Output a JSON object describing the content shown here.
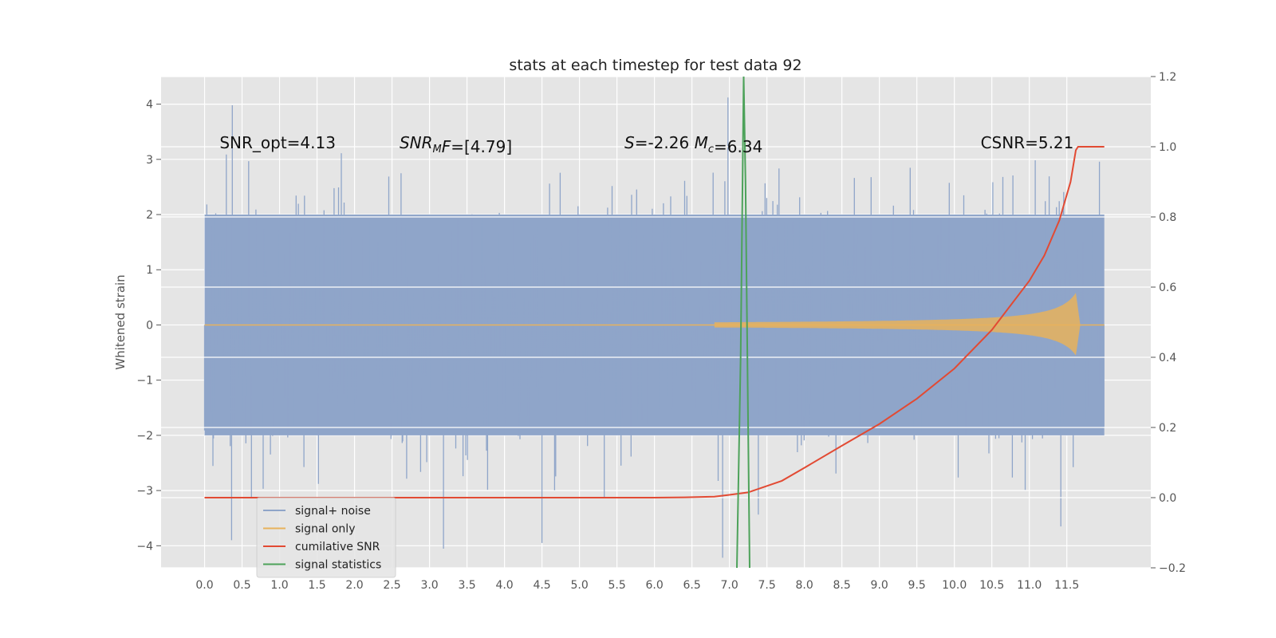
{
  "chart_data": {
    "type": "line",
    "title": "stats at each timestep for test data 92",
    "ylabel": "Whitened strain",
    "xlabel": "",
    "xlim": [
      -0.58,
      12.62
    ],
    "ylim": [
      -4.4,
      4.5
    ],
    "y2lim": [
      -0.2,
      1.2
    ],
    "x_ticks": [
      "0.0",
      "0.5",
      "1.0",
      "1.5",
      "2.0",
      "2.5",
      "3.0",
      "3.5",
      "4.0",
      "4.5",
      "5.0",
      "5.5",
      "6.0",
      "6.5",
      "7.0",
      "7.5",
      "8.0",
      "8.5",
      "9.0",
      "9.5",
      "10.0",
      "10.5",
      "11.0",
      "11.5"
    ],
    "x_tick_values": [
      0,
      0.5,
      1,
      1.5,
      2,
      2.5,
      3,
      3.5,
      4,
      4.5,
      5,
      5.5,
      6,
      6.5,
      7,
      7.5,
      8,
      8.5,
      9,
      9.5,
      10,
      10.5,
      11,
      11.5
    ],
    "y_ticks": [
      "−4",
      "−3",
      "−2",
      "−1",
      "0",
      "1",
      "2",
      "3",
      "4"
    ],
    "y_tick_values": [
      -4,
      -3,
      -2,
      -1,
      0,
      1,
      2,
      3,
      4
    ],
    "y2_ticks": [
      "−0.2",
      "0.0",
      "0.2",
      "0.4",
      "0.6",
      "0.8",
      "1.0",
      "1.2"
    ],
    "y2_tick_values": [
      -0.2,
      0,
      0.2,
      0.4,
      0.6,
      0.8,
      1.0,
      1.2
    ],
    "grid": true,
    "legend_position": "bottom-left",
    "annotations": [
      {
        "text": "SNR_opt=4.13",
        "x": 0.2,
        "y": 3.3
      },
      {
        "text": "SNR_MF=[4.79]",
        "x": 2.6,
        "y": 3.3,
        "parts": [
          {
            "t": "SNR",
            "style": "italic"
          },
          {
            "t": "M",
            "style": "italic",
            "sub": true
          },
          {
            "t": "F",
            "style": "italic"
          },
          {
            "t": "=[4.79]",
            "style": "normal"
          }
        ]
      },
      {
        "text": "S=-2.26  M_c=6.34",
        "x": 5.6,
        "y": 3.3,
        "parts": [
          {
            "t": "S",
            "style": "italic"
          },
          {
            "t": "=-2.26  ",
            "style": "normal"
          },
          {
            "t": "M",
            "style": "italic"
          },
          {
            "t": "c",
            "style": "italic",
            "sub": true
          },
          {
            "t": "=6.34",
            "style": "normal"
          }
        ]
      },
      {
        "text": "CSNR=5.21",
        "x": 10.35,
        "y": 3.3
      }
    ],
    "series": [
      {
        "name": "signal+ noise",
        "color": "#8fa5c9",
        "kind": "noise",
        "x_range": [
          0,
          12
        ],
        "amplitude": 2.0,
        "noise_std": 1.0,
        "peak_examples": [
          [
            0.37,
            3.98
          ],
          [
            0.36,
            -3.9
          ],
          [
            6.98,
            4.12
          ],
          [
            4.5,
            -3.95
          ],
          [
            11.42,
            -3.65
          ]
        ]
      },
      {
        "name": "signal only",
        "color": "#e8b25c",
        "kind": "chirp",
        "x_range": [
          0,
          11.68
        ],
        "start_amplitude": 0.01,
        "end_amplitude": 0.58,
        "merger": 11.62,
        "ringdown_end": 11.68
      },
      {
        "name": "cumilative SNR",
        "color": "#e24a33",
        "kind": "curve",
        "axis": "right",
        "x": [
          0,
          5,
          6,
          6.4,
          6.8,
          7.0,
          7.25,
          7.7,
          8.0,
          8.5,
          9.0,
          9.5,
          10.0,
          10.5,
          11.0,
          11.2,
          11.4,
          11.55,
          11.62,
          11.65,
          12.0
        ],
        "y": [
          0,
          0,
          0,
          0.001,
          0.003,
          0.008,
          0.015,
          0.048,
          0.085,
          0.148,
          0.21,
          0.282,
          0.368,
          0.478,
          0.618,
          0.69,
          0.79,
          0.9,
          0.99,
          1.0,
          1.0
        ]
      },
      {
        "name": "signal statistics",
        "color": "#4da25a",
        "kind": "spike",
        "axis": "right",
        "x": [
          7.1,
          7.15,
          7.175,
          7.19,
          7.215,
          7.25,
          7.27
        ],
        "y": [
          -0.2,
          0.4,
          0.9,
          1.2,
          0.9,
          0.2,
          -0.2
        ]
      }
    ]
  }
}
